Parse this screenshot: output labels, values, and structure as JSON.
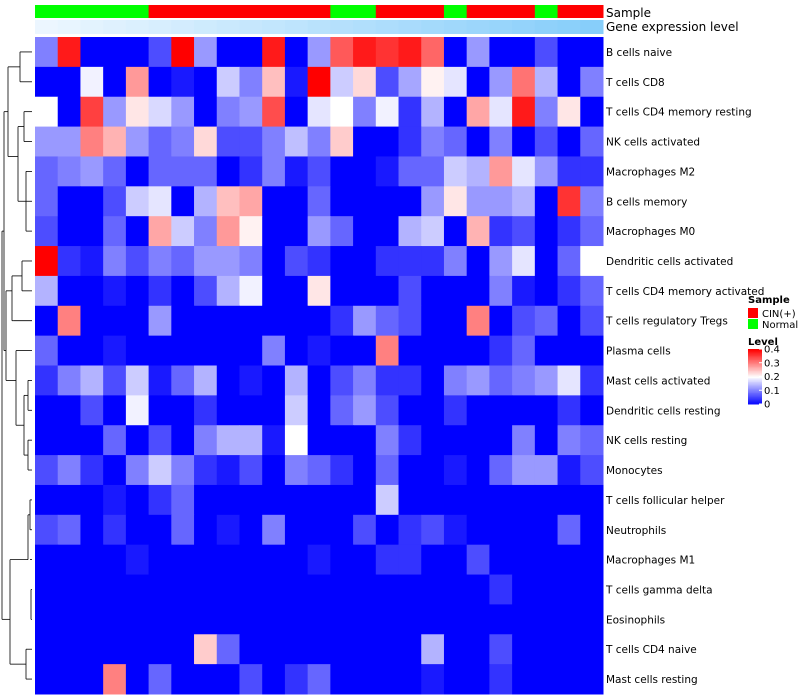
{
  "chart_data": {
    "type": "heatmap",
    "title": "",
    "annotation_labels": {
      "sample": "Sample",
      "gene_expression": "Gene expression level"
    },
    "rows": [
      "B cells naive",
      "T cells CD8",
      "T cells CD4 memory resting",
      "NK cells activated",
      "Macrophages M2",
      "B cells memory",
      "Macrophages M0",
      "Dendritic cells activated",
      "T cells CD4 memory activated",
      "T cells regulatory  Tregs",
      "Plasma cells",
      "Mast cells activated",
      "Dendritic cells resting",
      "NK cells resting",
      "Monocytes",
      "T cells follicular helper",
      "Neutrophils",
      "Macrophages M1",
      "T cells gamma delta",
      "Eosinophils",
      "T cells CD4 naive",
      "Mast cells resting"
    ],
    "column_count": 25,
    "sample_groups": [
      "N",
      "N",
      "N",
      "N",
      "N",
      "C",
      "C",
      "C",
      "C",
      "C",
      "C",
      "C",
      "C",
      "N",
      "N",
      "C",
      "C",
      "C",
      "N",
      "C",
      "C",
      "C",
      "N",
      "C",
      "C"
    ],
    "expression_levels": [
      0.02,
      0.04,
      0.06,
      0.08,
      0.1,
      0.12,
      0.14,
      0.16,
      0.18,
      0.2,
      0.22,
      0.24,
      0.26,
      0.28,
      0.3,
      0.32,
      0.34,
      0.36,
      0.38,
      0.4,
      0.42,
      0.44,
      0.46,
      0.48,
      0.5
    ],
    "values": [
      [
        0.1,
        0.38,
        0.0,
        0.0,
        0.0,
        0.06,
        0.4,
        0.12,
        0.0,
        0.0,
        0.38,
        0.0,
        0.12,
        0.33,
        0.38,
        0.36,
        0.38,
        0.32,
        0.0,
        0.12,
        0.0,
        0.0,
        0.06,
        0.0,
        0.0
      ],
      [
        0.0,
        0.0,
        0.19,
        0.0,
        0.28,
        0.0,
        0.02,
        0.0,
        0.16,
        0.1,
        0.25,
        0.02,
        0.4,
        0.16,
        0.23,
        0.06,
        0.13,
        0.21,
        0.18,
        0.0,
        0.12,
        0.31,
        0.14,
        0.0,
        0.1
      ],
      [
        0.2,
        0.0,
        0.35,
        0.12,
        0.22,
        0.17,
        0.12,
        0.0,
        0.1,
        0.12,
        0.34,
        0.0,
        0.18,
        0.2,
        0.1,
        0.19,
        0.04,
        0.14,
        0.0,
        0.27,
        0.18,
        0.38,
        0.1,
        0.22,
        0.0
      ],
      [
        0.12,
        0.12,
        0.3,
        0.26,
        0.12,
        0.08,
        0.1,
        0.23,
        0.06,
        0.06,
        0.1,
        0.15,
        0.1,
        0.24,
        0.0,
        0.0,
        0.04,
        0.1,
        0.08,
        0.0,
        0.1,
        0.0,
        0.06,
        0.0,
        0.08
      ],
      [
        0.08,
        0.1,
        0.12,
        0.08,
        0.0,
        0.08,
        0.08,
        0.08,
        0.0,
        0.04,
        0.1,
        0.02,
        0.06,
        0.0,
        0.0,
        0.02,
        0.08,
        0.08,
        0.16,
        0.14,
        0.28,
        0.18,
        0.12,
        0.04,
        0.04
      ],
      [
        0.08,
        0.0,
        0.0,
        0.06,
        0.16,
        0.18,
        0.0,
        0.14,
        0.25,
        0.27,
        0.0,
        0.0,
        0.08,
        0.0,
        0.0,
        0.0,
        0.0,
        0.12,
        0.22,
        0.12,
        0.12,
        0.14,
        0.0,
        0.36,
        0.1
      ],
      [
        0.06,
        0.0,
        0.0,
        0.08,
        0.0,
        0.27,
        0.16,
        0.1,
        0.28,
        0.21,
        0.0,
        0.0,
        0.12,
        0.08,
        0.0,
        0.0,
        0.14,
        0.16,
        0.0,
        0.26,
        0.04,
        0.06,
        0.0,
        0.04,
        0.08
      ],
      [
        0.4,
        0.04,
        0.02,
        0.1,
        0.06,
        0.1,
        0.08,
        0.12,
        0.12,
        0.1,
        0.0,
        0.06,
        0.04,
        0.0,
        0.0,
        0.04,
        0.04,
        0.04,
        0.1,
        0.0,
        0.12,
        0.18,
        0.0,
        0.08,
        0.2
      ],
      [
        0.14,
        0.0,
        0.0,
        0.02,
        0.0,
        0.04,
        0.0,
        0.06,
        0.14,
        0.19,
        0.0,
        0.0,
        0.22,
        0.0,
        0.0,
        0.0,
        0.06,
        0.0,
        0.0,
        0.0,
        0.1,
        0.02,
        0.0,
        0.04,
        0.08
      ],
      [
        0.0,
        0.3,
        0.0,
        0.0,
        0.0,
        0.12,
        0.0,
        0.0,
        0.0,
        0.0,
        0.0,
        0.0,
        0.0,
        0.04,
        0.12,
        0.08,
        0.06,
        0.0,
        0.0,
        0.3,
        0.0,
        0.06,
        0.08,
        0.0,
        0.06
      ],
      [
        0.08,
        0.0,
        0.0,
        0.02,
        0.0,
        0.0,
        0.0,
        0.0,
        0.0,
        0.0,
        0.1,
        0.0,
        0.02,
        0.0,
        0.0,
        0.3,
        0.0,
        0.0,
        0.0,
        0.0,
        0.04,
        0.08,
        0.0,
        0.0,
        0.0
      ],
      [
        0.04,
        0.1,
        0.14,
        0.06,
        0.16,
        0.02,
        0.08,
        0.14,
        0.0,
        0.02,
        0.0,
        0.14,
        0.0,
        0.06,
        0.1,
        0.04,
        0.04,
        0.0,
        0.1,
        0.12,
        0.08,
        0.1,
        0.12,
        0.18,
        0.04
      ],
      [
        0.0,
        0.0,
        0.06,
        0.0,
        0.19,
        0.0,
        0.0,
        0.04,
        0.0,
        0.0,
        0.0,
        0.16,
        0.0,
        0.08,
        0.12,
        0.06,
        0.0,
        0.0,
        0.04,
        0.0,
        0.0,
        0.0,
        0.0,
        0.04,
        0.0
      ],
      [
        0.0,
        0.0,
        0.0,
        0.08,
        0.0,
        0.06,
        0.0,
        0.1,
        0.14,
        0.14,
        0.02,
        0.2,
        0.0,
        0.0,
        0.0,
        0.1,
        0.04,
        0.0,
        0.0,
        0.0,
        0.0,
        0.1,
        0.0,
        0.1,
        0.08
      ],
      [
        0.06,
        0.1,
        0.04,
        0.0,
        0.1,
        0.16,
        0.1,
        0.04,
        0.02,
        0.06,
        0.0,
        0.1,
        0.08,
        0.04,
        0.0,
        0.08,
        0.0,
        0.0,
        0.02,
        0.0,
        0.08,
        0.12,
        0.12,
        0.02,
        0.06
      ],
      [
        0.0,
        0.0,
        0.0,
        0.02,
        0.0,
        0.04,
        0.08,
        0.0,
        0.0,
        0.0,
        0.0,
        0.0,
        0.0,
        0.0,
        0.0,
        0.16,
        0.0,
        0.0,
        0.0,
        0.0,
        0.0,
        0.0,
        0.0,
        0.0,
        0.0
      ],
      [
        0.06,
        0.08,
        0.0,
        0.04,
        0.0,
        0.0,
        0.08,
        0.0,
        0.02,
        0.0,
        0.1,
        0.0,
        0.0,
        0.0,
        0.06,
        0.0,
        0.04,
        0.06,
        0.02,
        0.0,
        0.0,
        0.0,
        0.0,
        0.08,
        0.0
      ],
      [
        0.0,
        0.0,
        0.0,
        0.0,
        0.02,
        0.0,
        0.0,
        0.0,
        0.0,
        0.0,
        0.0,
        0.0,
        0.02,
        0.0,
        0.0,
        0.04,
        0.04,
        0.0,
        0.0,
        0.06,
        0.0,
        0.0,
        0.0,
        0.0,
        0.0
      ],
      [
        0.0,
        0.0,
        0.0,
        0.0,
        0.0,
        0.0,
        0.0,
        0.0,
        0.0,
        0.0,
        0.0,
        0.0,
        0.0,
        0.0,
        0.0,
        0.0,
        0.0,
        0.0,
        0.0,
        0.0,
        0.04,
        0.0,
        0.0,
        0.0,
        0.0
      ],
      [
        0.0,
        0.0,
        0.0,
        0.0,
        0.0,
        0.0,
        0.0,
        0.0,
        0.0,
        0.0,
        0.0,
        0.0,
        0.0,
        0.0,
        0.0,
        0.0,
        0.0,
        0.0,
        0.0,
        0.0,
        0.0,
        0.0,
        0.0,
        0.0,
        0.0
      ],
      [
        0.0,
        0.0,
        0.0,
        0.0,
        0.0,
        0.0,
        0.0,
        0.24,
        0.08,
        0.0,
        0.0,
        0.0,
        0.0,
        0.0,
        0.0,
        0.0,
        0.0,
        0.14,
        0.0,
        0.0,
        0.06,
        0.0,
        0.0,
        0.0,
        0.0
      ],
      [
        0.0,
        0.0,
        0.0,
        0.3,
        0.0,
        0.08,
        0.0,
        0.0,
        0.0,
        0.06,
        0.0,
        0.04,
        0.08,
        0.0,
        0.0,
        0.0,
        0.0,
        0.02,
        0.0,
        0.0,
        0.04,
        0.0,
        0.0,
        0.0,
        0.0
      ]
    ],
    "legend": {
      "sample_title": "Sample",
      "sample_items": [
        {
          "label": "CIN(+)",
          "color": "#ff0000"
        },
        {
          "label": "Normal",
          "color": "#00ff00"
        }
      ],
      "level_title": "Level",
      "level_ticks": [
        "0.4",
        "0.3",
        "0.2",
        "0.1",
        "0"
      ],
      "level_values": [
        0.4,
        0.3,
        0.2,
        0.1,
        0
      ]
    },
    "colors": {
      "low": "#0000ff",
      "mid": "#ffffff",
      "high": "#ff0000"
    },
    "value_range": [
      0,
      0.4
    ]
  }
}
